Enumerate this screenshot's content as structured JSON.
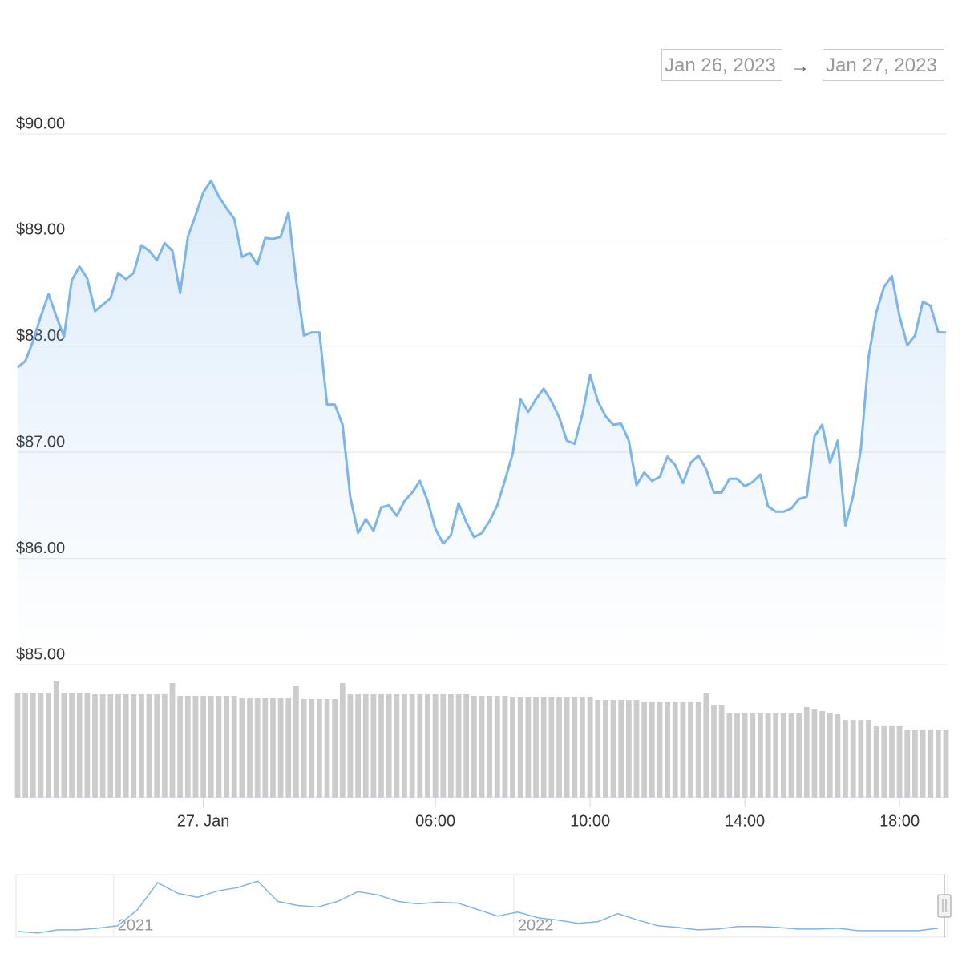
{
  "date_range": {
    "from": "Jan 26, 2023",
    "arrow": "→",
    "to": "Jan 27, 2023"
  },
  "chart_data": {
    "type": "line",
    "color": "#7cb5ec",
    "grid": true,
    "xlim": [
      -4.8,
      19.2
    ],
    "xticks": [
      {
        "value": 0,
        "label": "27. Jan"
      },
      {
        "value": 6,
        "label": "06:00"
      },
      {
        "value": 10,
        "label": "10:00"
      },
      {
        "value": 14,
        "label": "14:00"
      },
      {
        "value": 18,
        "label": "18:00"
      }
    ],
    "ylim": [
      85,
      90
    ],
    "yticks": [
      {
        "value": 85,
        "label": "$85.00"
      },
      {
        "value": 86,
        "label": "$86.00"
      },
      {
        "value": 87,
        "label": "$87.00"
      },
      {
        "value": 88,
        "label": "$88.00"
      },
      {
        "value": 89,
        "label": "$89.00"
      },
      {
        "value": 90,
        "label": "$90.00"
      }
    ],
    "x": [
      -4.8,
      -4.6,
      -4.4,
      -4.2,
      -4.0,
      -3.8,
      -3.6,
      -3.4,
      -3.2,
      -3.0,
      -2.8,
      -2.6,
      -2.4,
      -2.2,
      -2.0,
      -1.8,
      -1.6,
      -1.4,
      -1.2,
      -1.0,
      -0.8,
      -0.6,
      -0.4,
      -0.2,
      0.0,
      0.2,
      0.4,
      0.6,
      0.8,
      1.0,
      1.2,
      1.4,
      1.6,
      1.8,
      2.0,
      2.2,
      2.4,
      2.6,
      2.8,
      3.0,
      3.2,
      3.4,
      3.6,
      3.8,
      4.0,
      4.2,
      4.4,
      4.6,
      4.8,
      5.0,
      5.2,
      5.4,
      5.6,
      5.8,
      6.0,
      6.2,
      6.4,
      6.6,
      6.8,
      7.0,
      7.2,
      7.4,
      7.6,
      7.8,
      8.0,
      8.2,
      8.4,
      8.6,
      8.8,
      9.0,
      9.2,
      9.4,
      9.6,
      9.8,
      10.0,
      10.2,
      10.4,
      10.6,
      10.8,
      11.0,
      11.2,
      11.4,
      11.6,
      11.8,
      12.0,
      12.2,
      12.4,
      12.6,
      12.8,
      13.0,
      13.2,
      13.4,
      13.6,
      13.8,
      14.0,
      14.2,
      14.4,
      14.6,
      14.8,
      15.0,
      15.2,
      15.4,
      15.6,
      15.8,
      16.0,
      16.2,
      16.4,
      16.6,
      16.8,
      17.0,
      17.2,
      17.4,
      17.6,
      17.8,
      18.0,
      18.2,
      18.4,
      18.6,
      18.8,
      19.0,
      19.2
    ],
    "values": [
      87.8,
      87.86,
      88.05,
      88.28,
      88.49,
      88.28,
      88.09,
      88.62,
      88.75,
      88.64,
      88.33,
      88.39,
      88.45,
      88.69,
      88.63,
      88.69,
      88.95,
      88.9,
      88.81,
      88.97,
      88.9,
      88.5,
      89.03,
      89.23,
      89.45,
      89.56,
      89.41,
      89.3,
      89.2,
      88.84,
      88.88,
      88.77,
      89.02,
      89.01,
      89.03,
      89.26,
      88.62,
      88.1,
      88.13,
      88.13,
      87.45,
      87.45,
      87.26,
      86.58,
      86.24,
      86.37,
      86.26,
      86.48,
      86.5,
      86.4,
      86.54,
      86.62,
      86.73,
      86.54,
      86.28,
      86.14,
      86.22,
      86.52,
      86.34,
      86.2,
      86.24,
      86.35,
      86.5,
      86.74,
      86.99,
      87.5,
      87.38,
      87.5,
      87.6,
      87.48,
      87.33,
      87.11,
      87.08,
      87.36,
      87.73,
      87.48,
      87.34,
      87.26,
      87.27,
      87.11,
      86.69,
      86.81,
      86.73,
      86.77,
      86.96,
      86.88,
      86.71,
      86.9,
      86.97,
      86.84,
      86.62,
      86.62,
      86.75,
      86.75,
      86.68,
      86.72,
      86.79,
      86.49,
      86.44,
      86.44,
      86.47,
      86.56,
      86.58,
      87.15,
      87.26,
      86.9,
      87.11,
      86.31,
      86.59,
      87.03,
      87.9,
      88.32,
      88.56,
      88.66,
      88.28,
      88.01,
      88.1,
      88.42,
      88.38,
      88.13,
      88.13
    ],
    "volume": {
      "color": "#cccccc",
      "ylim": [
        0,
        165
      ],
      "values": [
        131,
        131,
        131,
        131,
        131,
        145,
        131,
        131,
        131,
        131,
        129,
        129,
        129,
        129,
        129,
        129,
        129,
        129,
        129,
        129,
        143,
        127,
        127,
        127,
        127,
        127,
        127,
        127,
        127,
        124,
        124,
        124,
        124,
        124,
        124,
        124,
        139,
        123,
        123,
        123,
        123,
        123,
        143,
        129,
        129,
        129,
        129,
        129,
        129,
        129,
        129,
        129,
        129,
        129,
        129,
        129,
        129,
        129,
        129,
        127,
        127,
        127,
        127,
        127,
        125,
        125,
        125,
        125,
        125,
        125,
        125,
        125,
        125,
        125,
        125,
        122,
        122,
        122,
        122,
        122,
        122,
        119,
        119,
        119,
        119,
        119,
        119,
        119,
        119,
        130,
        115,
        115,
        105,
        105,
        105,
        105,
        105,
        105,
        105,
        105,
        105,
        105,
        113,
        110,
        108,
        106,
        104,
        97,
        97,
        97,
        97,
        90,
        90,
        90,
        90,
        85,
        85,
        85,
        85,
        85,
        85
      ]
    },
    "navigator": {
      "xlim": [
        2020.76,
        2023.08
      ],
      "xticks": [
        2021,
        2022
      ],
      "ylim": [
        0,
        75
      ],
      "x": [
        2020.76,
        2020.81,
        2020.86,
        2020.91,
        2020.96,
        2021.01,
        2021.06,
        2021.11,
        2021.16,
        2021.21,
        2021.26,
        2021.31,
        2021.36,
        2021.41,
        2021.46,
        2021.51,
        2021.56,
        2021.61,
        2021.66,
        2021.71,
        2021.76,
        2021.81,
        2021.86,
        2021.91,
        2021.96,
        2022.01,
        2022.06,
        2022.11,
        2022.16,
        2022.21,
        2022.26,
        2022.31,
        2022.36,
        2022.41,
        2022.46,
        2022.51,
        2022.56,
        2022.61,
        2022.66,
        2022.71,
        2022.76,
        2022.81,
        2022.86,
        2022.91,
        2022.96,
        2023.01,
        2023.06
      ],
      "values": [
        6,
        4,
        8,
        8,
        10,
        13,
        33,
        66,
        53,
        48,
        56,
        60,
        68,
        43,
        38,
        36,
        43,
        55,
        51,
        43,
        40,
        42,
        41,
        33,
        25,
        30,
        23,
        20,
        16,
        18,
        28,
        20,
        13,
        11,
        8,
        9,
        12,
        12,
        11,
        9,
        9,
        10,
        7,
        7,
        7,
        7,
        10
      ]
    }
  }
}
